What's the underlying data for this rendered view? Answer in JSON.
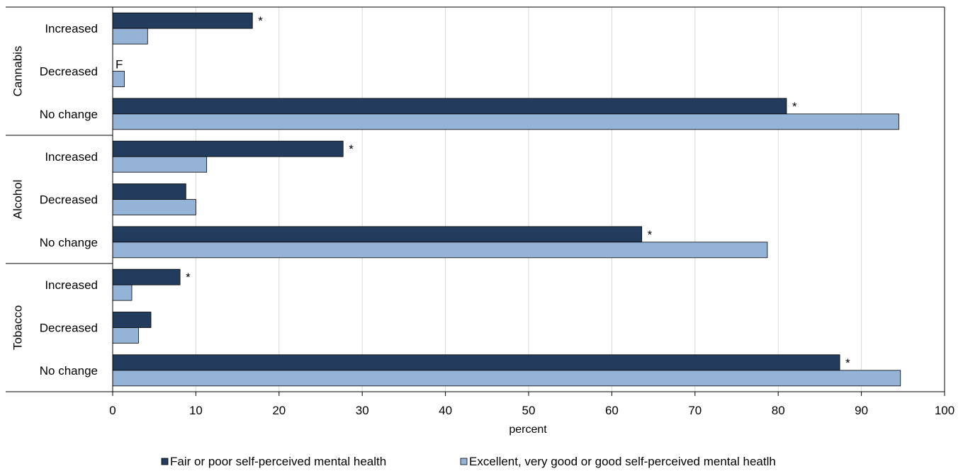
{
  "chart_data": {
    "type": "bar",
    "orientation": "horizontal",
    "groups": [
      {
        "name": "Cannabis",
        "categories": [
          "Increased",
          "Decreased",
          "No change"
        ]
      },
      {
        "name": "Alcohol",
        "categories": [
          "Increased",
          "Decreased",
          "No change"
        ]
      },
      {
        "name": "Tobacco",
        "categories": [
          "Increased",
          "Decreased",
          "No change"
        ]
      }
    ],
    "series": [
      {
        "name": "Fair or poor self-perceived mental health",
        "color": "#233b5c",
        "values": [
          16.8,
          null,
          81.0,
          27.7,
          8.8,
          63.6,
          8.1,
          4.6,
          87.4
        ],
        "annotations": [
          "*",
          "F",
          "*",
          "*",
          "",
          "*",
          "*",
          "",
          "*"
        ]
      },
      {
        "name": "Excellent, very good or good self-perceived mental heatlh",
        "color": "#95b3d7",
        "values": [
          4.2,
          1.4,
          94.5,
          11.3,
          10.0,
          78.7,
          2.3,
          3.1,
          94.7
        ]
      }
    ],
    "xlabel": "percent",
    "xlim": [
      0,
      100
    ],
    "xticks": [
      "0",
      "10",
      "20",
      "30",
      "40",
      "50",
      "60",
      "70",
      "80",
      "90",
      "100"
    ],
    "grid": "vertical",
    "legend_position": "bottom"
  }
}
